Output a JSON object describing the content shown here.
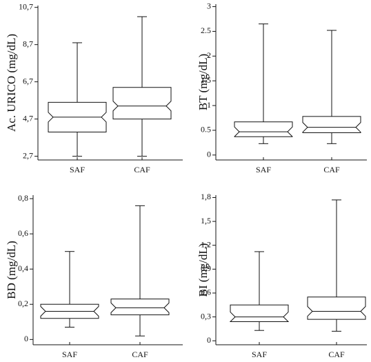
{
  "chart_data": [
    {
      "type": "box",
      "ylabel": "Ac. URICO (mg/dL)",
      "categories": [
        "SAF",
        "CAF"
      ],
      "min": [
        2.7,
        2.7
      ],
      "q1": [
        4.0,
        4.7
      ],
      "median": [
        4.8,
        5.4
      ],
      "q3": [
        5.6,
        6.4
      ],
      "max": [
        8.8,
        10.2
      ],
      "ylim": [
        2.5,
        10.8
      ],
      "yticks": [
        {
          "value": 2.7,
          "label": "2,7"
        },
        {
          "value": 4.7,
          "label": "4,7"
        },
        {
          "value": 6.7,
          "label": "6,7"
        },
        {
          "value": 8.7,
          "label": "8,7"
        },
        {
          "value": 10.7,
          "label": "10,7"
        }
      ]
    },
    {
      "type": "box",
      "ylabel": "BT (mg/dL)",
      "categories": [
        "SAF",
        "CAF"
      ],
      "min": [
        0.23,
        0.23
      ],
      "q1": [
        0.37,
        0.45
      ],
      "median": [
        0.47,
        0.56
      ],
      "q3": [
        0.67,
        0.78
      ],
      "max": [
        2.65,
        2.52
      ],
      "ylim": [
        -0.1,
        3.05
      ],
      "yticks": [
        0,
        0.5,
        1,
        1.5,
        2,
        2.5,
        3
      ]
    },
    {
      "type": "box",
      "ylabel": "BD (mg/dL)",
      "categories": [
        "SAF",
        "CAF"
      ],
      "min": [
        0.07,
        0.02
      ],
      "q1": [
        0.12,
        0.14
      ],
      "median": [
        0.16,
        0.18
      ],
      "q3": [
        0.2,
        0.23
      ],
      "max": [
        0.5,
        0.76
      ],
      "ylim": [
        -0.03,
        0.82
      ],
      "yticks": [
        0,
        {
          "value": 0.2,
          "label": "0,2"
        },
        {
          "value": 0.4,
          "label": "0,4"
        },
        {
          "value": 0.6,
          "label": "0,6"
        },
        {
          "value": 0.8,
          "label": "0,8"
        }
      ]
    },
    {
      "type": "box",
      "ylabel": "BI (mg/dL)",
      "categories": [
        "SAF",
        "CAF"
      ],
      "min": [
        0.13,
        0.12
      ],
      "q1": [
        0.24,
        0.27
      ],
      "median": [
        0.3,
        0.37
      ],
      "q3": [
        0.45,
        0.55
      ],
      "max": [
        1.12,
        1.77
      ],
      "ylim": [
        -0.05,
        1.83
      ],
      "yticks": [
        0,
        {
          "value": 0.3,
          "label": "0,3"
        },
        {
          "value": 0.6,
          "label": "0,6"
        },
        {
          "value": 0.9,
          "label": "0,9"
        },
        {
          "value": 1.2,
          "label": "1,2"
        },
        {
          "value": 1.5,
          "label": "1,5"
        },
        {
          "value": 1.8,
          "label": "1,8"
        }
      ]
    }
  ]
}
